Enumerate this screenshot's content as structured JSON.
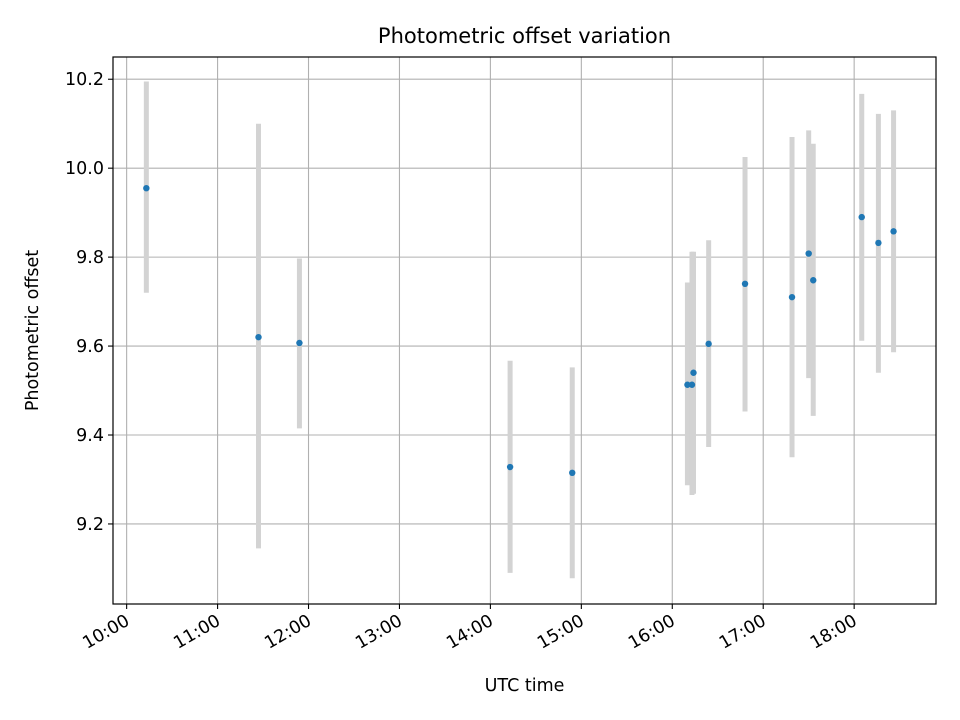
{
  "chart_data": {
    "type": "scatter",
    "title": "Photometric offset variation",
    "xlabel": "UTC time",
    "ylabel": "Photometric offset",
    "grid": true,
    "xlim": [
      "09:51",
      "18:54"
    ],
    "ylim": [
      9.02,
      10.25
    ],
    "x_ticks": [
      "10:00",
      "11:00",
      "12:00",
      "13:00",
      "14:00",
      "15:00",
      "16:00",
      "17:00",
      "18:00"
    ],
    "y_ticks": [
      9.2,
      9.4,
      9.6,
      9.8,
      10.0,
      10.2
    ],
    "y_tick_labels": [
      "9.2",
      "9.4",
      "9.6",
      "9.8",
      "10.0",
      "10.2"
    ],
    "marker_color": "#1f77b4",
    "errorbar_color": "#d3d3d3",
    "points": [
      {
        "time": "10:13",
        "y": 9.955,
        "low": 9.72,
        "high": 10.195
      },
      {
        "time": "11:27",
        "y": 9.62,
        "low": 9.145,
        "high": 10.1
      },
      {
        "time": "11:54",
        "y": 9.607,
        "low": 9.415,
        "high": 9.797
      },
      {
        "time": "14:13",
        "y": 9.328,
        "low": 9.09,
        "high": 9.567
      },
      {
        "time": "14:54",
        "y": 9.315,
        "low": 9.078,
        "high": 9.552
      },
      {
        "time": "16:10",
        "y": 9.513,
        "low": 9.287,
        "high": 9.743
      },
      {
        "time": "16:13",
        "y": 9.513,
        "low": 9.265,
        "high": 9.812
      },
      {
        "time": "16:14",
        "y": 9.54,
        "low": 9.268,
        "high": 9.812
      },
      {
        "time": "16:24",
        "y": 9.605,
        "low": 9.373,
        "high": 9.838
      },
      {
        "time": "16:48",
        "y": 9.74,
        "low": 9.453,
        "high": 10.025
      },
      {
        "time": "17:19",
        "y": 9.71,
        "low": 9.35,
        "high": 10.07
      },
      {
        "time": "17:30",
        "y": 9.808,
        "low": 9.528,
        "high": 10.085
      },
      {
        "time": "17:33",
        "y": 9.748,
        "low": 9.443,
        "high": 10.055
      },
      {
        "time": "18:05",
        "y": 9.89,
        "low": 9.612,
        "high": 10.167
      },
      {
        "time": "18:16",
        "y": 9.832,
        "low": 9.54,
        "high": 10.122
      },
      {
        "time": "18:26",
        "y": 9.858,
        "low": 9.586,
        "high": 10.13
      }
    ]
  }
}
